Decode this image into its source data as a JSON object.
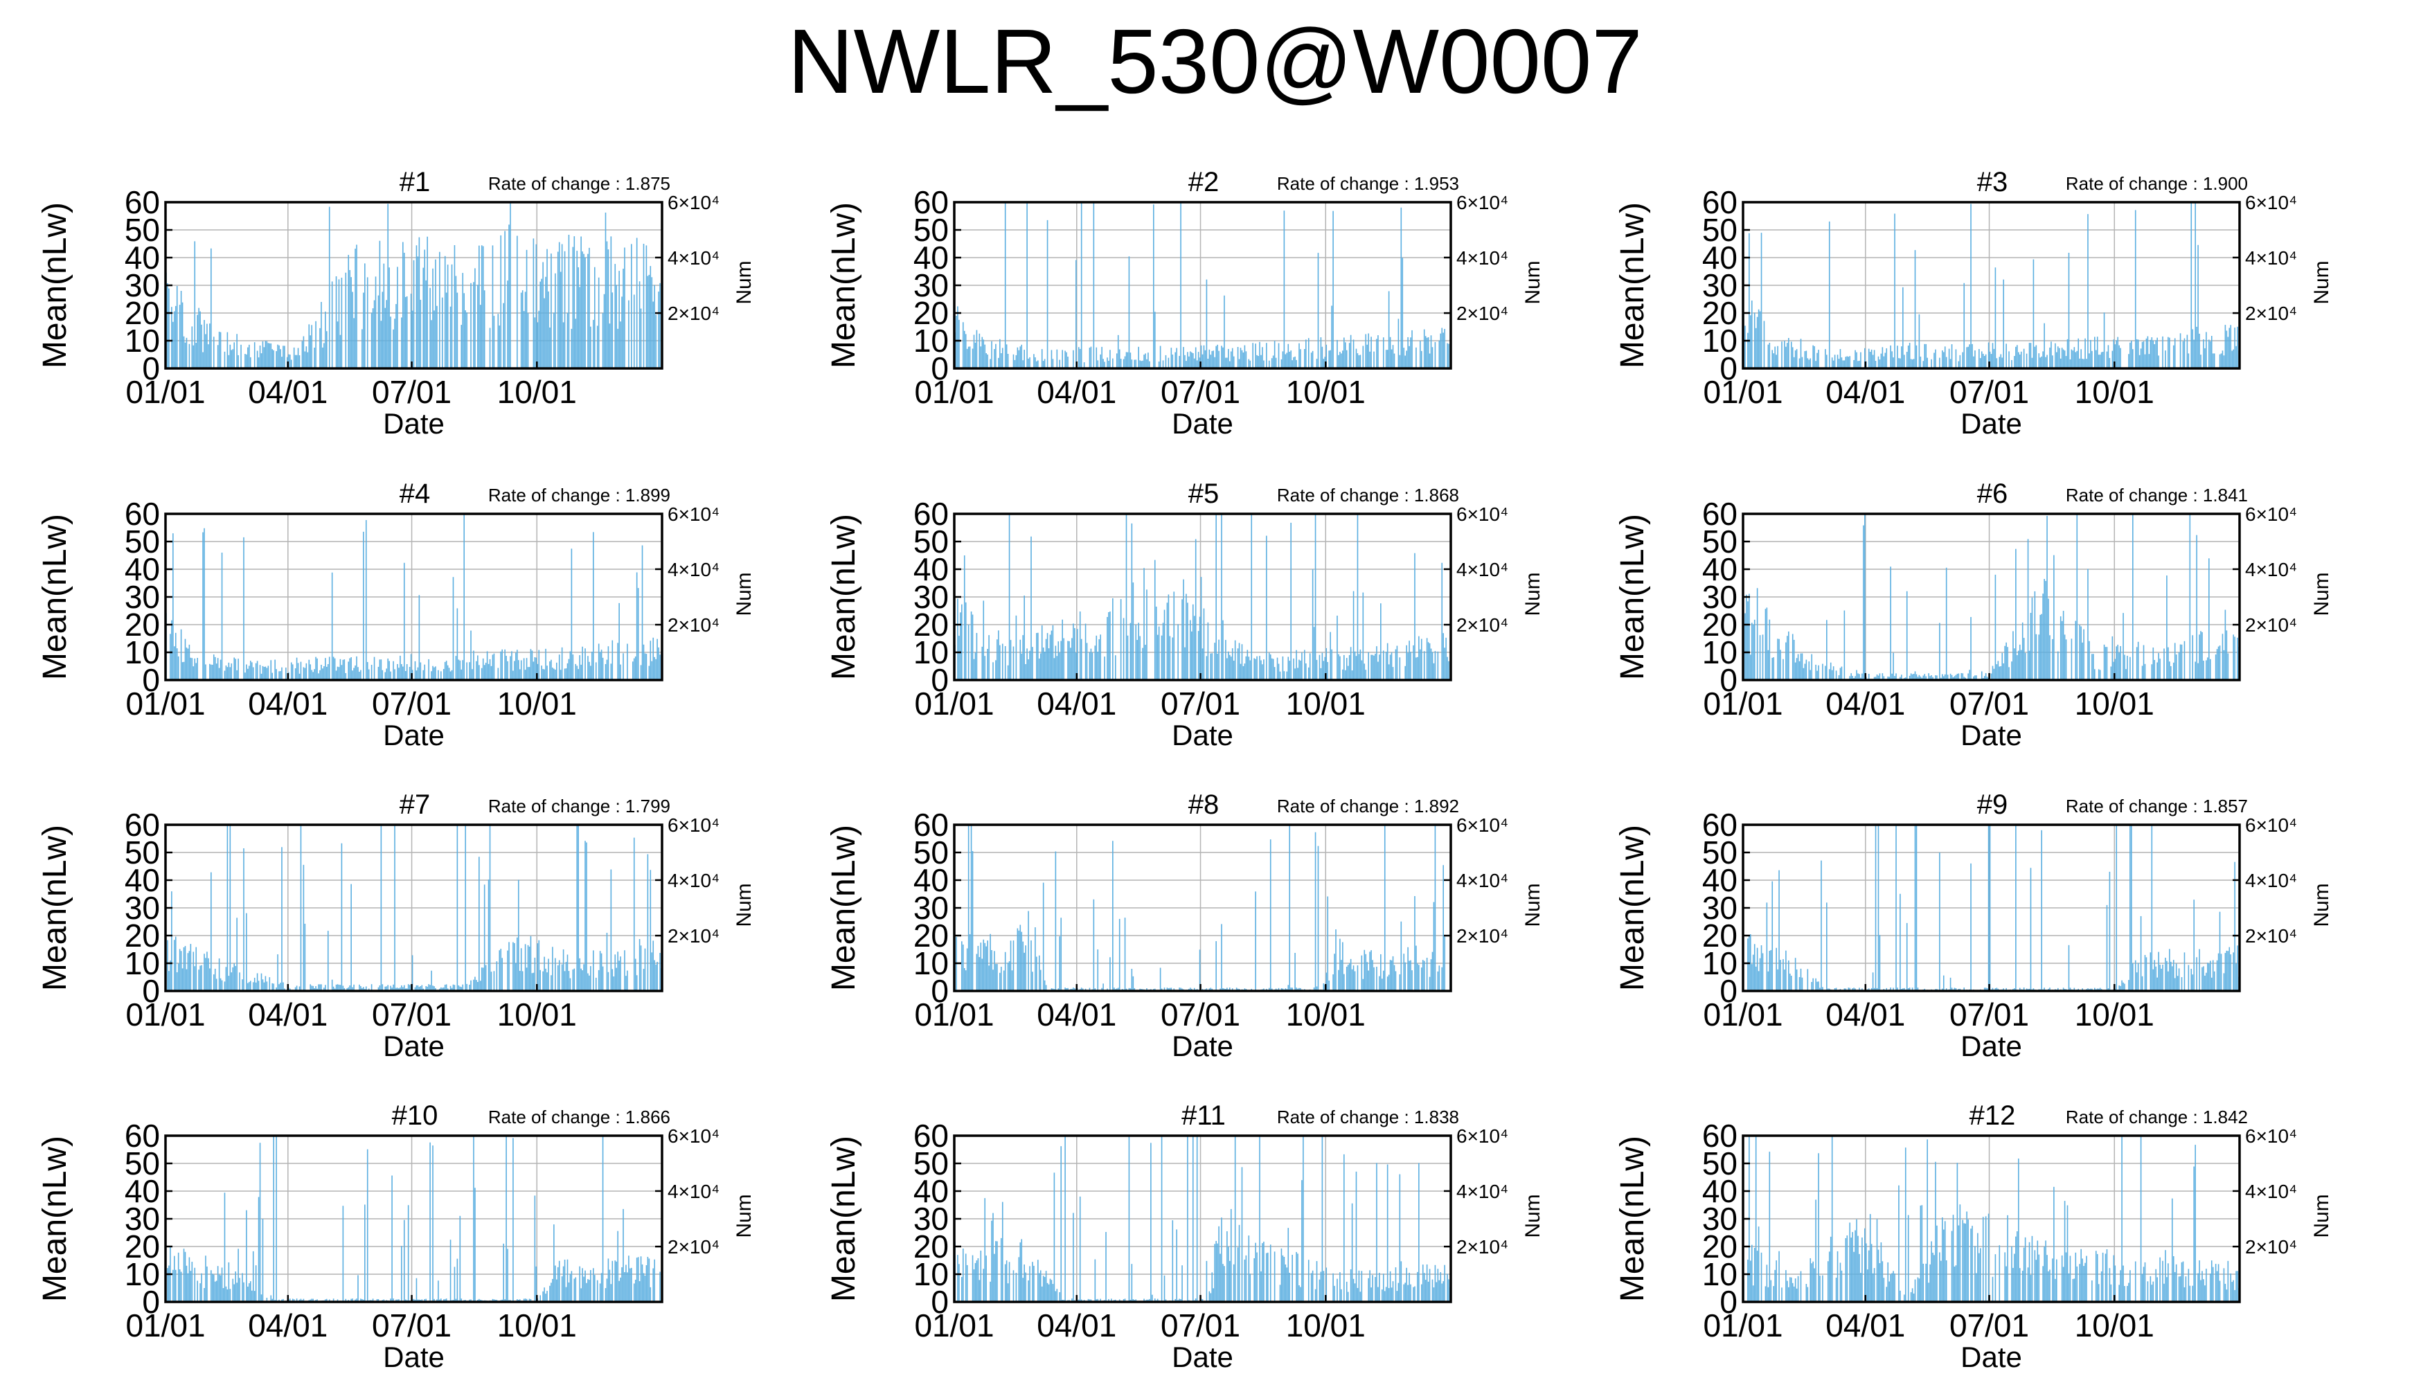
{
  "page": {
    "title": "NWLR_530@W0007"
  },
  "colors": {
    "bar": "#5aaee0",
    "axes": "#000000",
    "grid": "#b4b4b4"
  },
  "chart_data": [
    {
      "type": "bar",
      "title": "#1",
      "annotation": "Rate of change : 1.875",
      "xlabel": "Date",
      "ylabel": "Mean(nLw)",
      "y2label": "Num",
      "xticks": [
        "01/01",
        "04/01",
        "07/01",
        "10/01"
      ],
      "yticks": [
        0,
        10,
        20,
        30,
        40,
        50,
        60
      ],
      "ylim": [
        0,
        60
      ],
      "y2ticks": [
        "2×10⁴",
        "4×10⁴",
        "6×10⁴"
      ],
      "grid": true,
      "profile": [
        [
          0,
          28,
          0.3
        ],
        [
          35,
          13,
          0.3
        ],
        [
          95,
          6,
          0.2
        ],
        [
          140,
          38,
          0.45
        ],
        [
          360,
          40,
          0.45
        ]
      ]
    },
    {
      "type": "bar",
      "title": "#2",
      "annotation": "Rate of change : 1.953",
      "xlabel": "Date",
      "ylabel": "Mean(nLw)",
      "y2label": "Num",
      "xticks": [
        "01/01",
        "04/01",
        "07/01",
        "10/01"
      ],
      "yticks": [
        0,
        10,
        20,
        30,
        40,
        50,
        60
      ],
      "ylim": [
        0,
        60
      ],
      "y2ticks": [
        "2×10⁴",
        "4×10⁴",
        "6×10⁴"
      ],
      "grid": true,
      "profile": [
        [
          0,
          22,
          0.5
        ],
        [
          20,
          10,
          0.4
        ],
        [
          60,
          6,
          0.35
        ],
        [
          200,
          7,
          0.35
        ],
        [
          300,
          10,
          0.35
        ],
        [
          365,
          12,
          0.4
        ]
      ]
    },
    {
      "type": "bar",
      "title": "#3",
      "annotation": "Rate of change : 1.900",
      "xlabel": "Date",
      "ylabel": "Mean(nLw)",
      "y2label": "Num",
      "xticks": [
        "01/01",
        "04/01",
        "07/01",
        "10/01"
      ],
      "yticks": [
        0,
        10,
        20,
        30,
        40,
        50,
        60
      ],
      "ylim": [
        0,
        60
      ],
      "y2ticks": [
        "2×10⁴",
        "4×10⁴",
        "6×10⁴"
      ],
      "grid": true,
      "profile": [
        [
          0,
          24,
          0.5
        ],
        [
          20,
          12,
          0.4
        ],
        [
          60,
          6,
          0.35
        ],
        [
          200,
          8,
          0.35
        ],
        [
          300,
          10,
          0.35
        ],
        [
          365,
          14,
          0.4
        ]
      ]
    },
    {
      "type": "bar",
      "title": "#4",
      "annotation": "Rate of change : 1.899",
      "xlabel": "Date",
      "ylabel": "Mean(nLw)",
      "y2label": "Num",
      "xticks": [
        "01/01",
        "04/01",
        "07/01",
        "10/01"
      ],
      "yticks": [
        0,
        10,
        20,
        30,
        40,
        50,
        60
      ],
      "ylim": [
        0,
        60
      ],
      "y2ticks": [
        "2×10⁴",
        "4×10⁴",
        "6×10⁴"
      ],
      "grid": true,
      "profile": [
        [
          0,
          22,
          0.5
        ],
        [
          20,
          10,
          0.4
        ],
        [
          60,
          6,
          0.35
        ],
        [
          200,
          8,
          0.35
        ],
        [
          300,
          10,
          0.4
        ],
        [
          365,
          14,
          0.45
        ]
      ]
    },
    {
      "type": "bar",
      "title": "#5",
      "annotation": "Rate of change : 1.868",
      "xlabel": "Date",
      "ylabel": "Mean(nLw)",
      "y2label": "Num",
      "xticks": [
        "01/01",
        "04/01",
        "07/01",
        "10/01"
      ],
      "yticks": [
        0,
        10,
        20,
        30,
        40,
        50,
        60
      ],
      "ylim": [
        0,
        60
      ],
      "y2ticks": [
        "2×10⁴",
        "4×10⁴",
        "6×10⁴"
      ],
      "grid": true,
      "profile": [
        [
          0,
          28,
          0.5
        ],
        [
          30,
          12,
          0.4
        ],
        [
          90,
          20,
          0.6
        ],
        [
          160,
          30,
          0.7
        ],
        [
          220,
          8,
          0.4
        ],
        [
          300,
          10,
          0.4
        ],
        [
          365,
          16,
          0.45
        ]
      ]
    },
    {
      "type": "bar",
      "title": "#6",
      "annotation": "Rate of change : 1.841",
      "xlabel": "Date",
      "ylabel": "Mean(nLw)",
      "y2label": "Num",
      "xticks": [
        "01/01",
        "04/01",
        "07/01",
        "10/01"
      ],
      "yticks": [
        0,
        10,
        20,
        30,
        40,
        50,
        60
      ],
      "ylim": [
        0,
        60
      ],
      "y2ticks": [
        "2×10⁴",
        "4×10⁴",
        "6×10⁴"
      ],
      "grid": true,
      "profile": [
        [
          0,
          28,
          0.6
        ],
        [
          40,
          12,
          0.4
        ],
        [
          80,
          2,
          0.6
        ],
        [
          180,
          2,
          0.6
        ],
        [
          220,
          30,
          0.7
        ],
        [
          260,
          10,
          0.4
        ],
        [
          365,
          16,
          0.45
        ]
      ]
    },
    {
      "type": "bar",
      "title": "#7",
      "annotation": "Rate of change : 1.799",
      "xlabel": "Date",
      "ylabel": "Mean(nLw)",
      "y2label": "Num",
      "xticks": [
        "01/01",
        "04/01",
        "07/01",
        "10/01"
      ],
      "yticks": [
        0,
        10,
        20,
        30,
        40,
        50,
        60
      ],
      "ylim": [
        0,
        60
      ],
      "y2ticks": [
        "2×10⁴",
        "4×10⁴",
        "6×10⁴"
      ],
      "grid": true,
      "profile": [
        [
          0,
          18,
          0.6
        ],
        [
          40,
          10,
          0.5
        ],
        [
          90,
          2,
          0.8
        ],
        [
          220,
          2,
          0.8
        ],
        [
          260,
          18,
          0.8
        ],
        [
          290,
          12,
          0.4
        ],
        [
          365,
          16,
          0.45
        ]
      ]
    },
    {
      "type": "bar",
      "title": "#8",
      "annotation": "Rate of change : 1.892",
      "xlabel": "Date",
      "ylabel": "Mean(nLw)",
      "y2label": "Num",
      "xticks": [
        "01/01",
        "04/01",
        "07/01",
        "10/01"
      ],
      "yticks": [
        0,
        10,
        20,
        30,
        40,
        50,
        60
      ],
      "ylim": [
        0,
        60
      ],
      "y2ticks": [
        "2×10⁴",
        "4×10⁴",
        "6×10⁴"
      ],
      "grid": true,
      "profile": [
        [
          0,
          16,
          0.6
        ],
        [
          55,
          20,
          0.8
        ],
        [
          70,
          1,
          0.9
        ],
        [
          270,
          1,
          0.9
        ],
        [
          280,
          18,
          0.7
        ],
        [
          300,
          12,
          0.4
        ],
        [
          365,
          14,
          0.45
        ]
      ]
    },
    {
      "type": "bar",
      "title": "#9",
      "annotation": "Rate of change : 1.857",
      "xlabel": "Date",
      "ylabel": "Mean(nLw)",
      "y2label": "Num",
      "xticks": [
        "01/01",
        "04/01",
        "07/01",
        "10/01"
      ],
      "yticks": [
        0,
        10,
        20,
        30,
        40,
        50,
        60
      ],
      "ylim": [
        0,
        60
      ],
      "y2ticks": [
        "2×10⁴",
        "4×10⁴",
        "6×10⁴"
      ],
      "grid": true,
      "profile": [
        [
          0,
          18,
          0.6
        ],
        [
          40,
          10,
          0.6
        ],
        [
          60,
          1,
          0.9
        ],
        [
          275,
          1,
          0.9
        ],
        [
          290,
          12,
          0.4
        ],
        [
          365,
          14,
          0.45
        ]
      ]
    },
    {
      "type": "bar",
      "title": "#10",
      "annotation": "Rate of change : 1.866",
      "xlabel": "Date",
      "ylabel": "Mean(nLw)",
      "y2label": "Num",
      "xticks": [
        "01/01",
        "04/01",
        "07/01",
        "10/01"
      ],
      "yticks": [
        0,
        10,
        20,
        30,
        40,
        50,
        60
      ],
      "ylim": [
        0,
        60
      ],
      "y2ticks": [
        "2×10⁴",
        "4×10⁴",
        "6×10⁴"
      ],
      "grid": true,
      "profile": [
        [
          0,
          18,
          0.6
        ],
        [
          45,
          12,
          0.6
        ],
        [
          80,
          1,
          0.9
        ],
        [
          270,
          1,
          0.9
        ],
        [
          285,
          12,
          0.4
        ],
        [
          365,
          14,
          0.45
        ]
      ]
    },
    {
      "type": "bar",
      "title": "#11",
      "annotation": "Rate of change : 1.838",
      "xlabel": "Date",
      "ylabel": "Mean(nLw)",
      "y2label": "Num",
      "xticks": [
        "01/01",
        "04/01",
        "07/01",
        "10/01"
      ],
      "yticks": [
        0,
        10,
        20,
        30,
        40,
        50,
        60
      ],
      "ylim": [
        0,
        60
      ],
      "y2ticks": [
        "2×10⁴",
        "4×10⁴",
        "6×10⁴"
      ],
      "grid": true,
      "profile": [
        [
          0,
          20,
          0.6
        ],
        [
          60,
          18,
          0.7
        ],
        [
          80,
          1,
          0.9
        ],
        [
          185,
          1,
          0.9
        ],
        [
          195,
          25,
          0.8
        ],
        [
          280,
          10,
          0.4
        ],
        [
          365,
          12,
          0.45
        ]
      ]
    },
    {
      "type": "bar",
      "title": "#12",
      "annotation": "Rate of change : 1.842",
      "xlabel": "Date",
      "ylabel": "Mean(nLw)",
      "y2label": "Num",
      "xticks": [
        "01/01",
        "04/01",
        "07/01",
        "10/01"
      ],
      "yticks": [
        0,
        10,
        20,
        30,
        40,
        50,
        60
      ],
      "ylim": [
        0,
        60
      ],
      "y2ticks": [
        "2×10⁴",
        "4×10⁴",
        "6×10⁴"
      ],
      "grid": true,
      "profile": [
        [
          0,
          18,
          0.6
        ],
        [
          40,
          10,
          0.5
        ],
        [
          90,
          30,
          0.7
        ],
        [
          120,
          1,
          0.9
        ],
        [
          150,
          30,
          0.7
        ],
        [
          250,
          15,
          0.5
        ],
        [
          365,
          12,
          0.45
        ]
      ]
    }
  ]
}
